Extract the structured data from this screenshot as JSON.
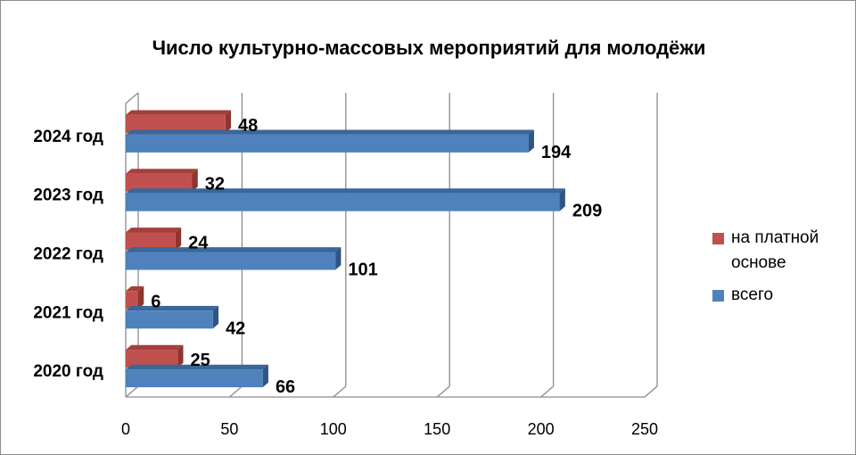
{
  "chart_data": {
    "type": "bar",
    "orientation": "horizontal",
    "three_d": true,
    "title": "Число культурно-массовых мероприятий  для молодёжи",
    "categories": [
      "2020 год",
      "2021 год",
      "2022 год",
      "2023 год",
      "2024 год"
    ],
    "series": [
      {
        "name": "всего",
        "color": "#4F81BD",
        "values": [
          66,
          42,
          101,
          209,
          194
        ]
      },
      {
        "name": "на платной основе",
        "color": "#C0504D",
        "values": [
          25,
          6,
          24,
          32,
          48
        ]
      }
    ],
    "x_ticks": [
      "0",
      "50",
      "100",
      "150",
      "200",
      "250"
    ],
    "xlim": [
      0,
      250
    ],
    "grid": true,
    "legend_position": "right"
  }
}
